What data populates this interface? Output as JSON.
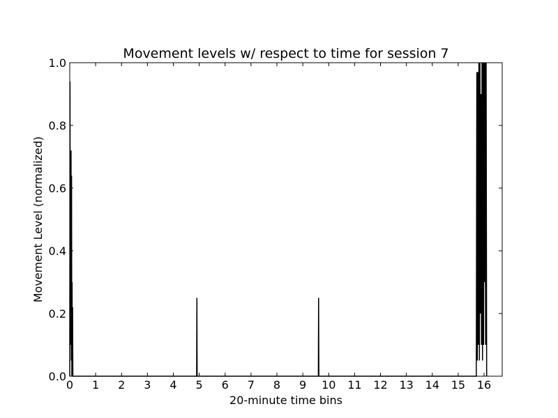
{
  "chart_data": {
    "type": "line",
    "title": "Movement levels w/ respect to time for session 7",
    "xlabel": "20-minute time bins",
    "ylabel": "Movement Level (normalized)",
    "xlim": [
      0,
      16.7
    ],
    "ylim": [
      0,
      1.0
    ],
    "xticks": [
      0,
      1,
      2,
      3,
      4,
      5,
      6,
      7,
      8,
      9,
      10,
      11,
      12,
      13,
      14,
      15,
      16
    ],
    "xtick_labels": [
      "0",
      "1",
      "2",
      "3",
      "4",
      "5",
      "6",
      "7",
      "8",
      "9",
      "10",
      "11",
      "12",
      "13",
      "14",
      "15",
      "16"
    ],
    "yticks": [
      0,
      0.2,
      0.4,
      0.6,
      0.8,
      1.0
    ],
    "ytick_labels": [
      "0.0",
      "0.2",
      "0.4",
      "0.6",
      "0.8",
      "1.0"
    ],
    "grid": false,
    "line_color": "#000000",
    "series": [
      {
        "x": [
          0,
          0.01,
          0.02,
          0.03,
          0.04,
          0.05,
          0.06,
          0.07,
          0.08,
          0.09,
          0.1,
          0.11,
          0.12,
          0.13,
          0.14,
          0.15,
          0.16,
          0.17,
          0.18,
          4.9,
          4.91,
          4.92,
          9.6,
          9.61,
          9.62,
          15.7,
          15.72,
          15.74,
          15.76,
          15.78,
          15.8,
          15.82,
          15.84,
          15.86,
          15.88,
          15.9,
          15.92,
          15.94,
          15.96,
          15.98,
          16.0,
          16.02,
          16.04,
          16.06,
          16.08,
          16.1
        ],
        "y": [
          0,
          0.94,
          0.2,
          0.7,
          0.1,
          0.72,
          0.05,
          0.64,
          0.0,
          0.3,
          0.0,
          0.22,
          0.0,
          0.0,
          0.0,
          0.0,
          0.0,
          0.0,
          0.0,
          0.0,
          0.25,
          0.0,
          0.0,
          0.25,
          0.0,
          0.0,
          0.97,
          0.05,
          0.97,
          0.1,
          1.0,
          0.05,
          1.0,
          0.2,
          0.9,
          0.1,
          1.0,
          0.05,
          1.0,
          0.1,
          1.0,
          0.3,
          1.0,
          0.1,
          1.0,
          0.0
        ]
      }
    ]
  }
}
